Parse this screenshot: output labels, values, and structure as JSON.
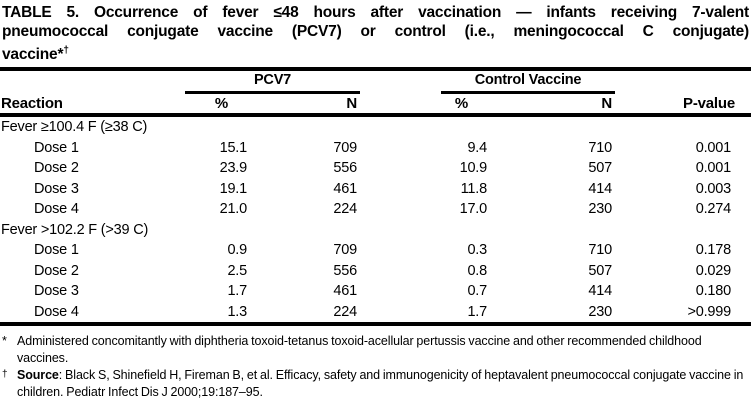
{
  "title": {
    "lines": [
      "TABLE 5. Occurrence of fever ≤48 hours after vaccination — infants receiving 7-valent",
      "pneumococcal conjugate vaccine (PCV7) or control (i.e., meningococcal C conjugate)"
    ],
    "line3_base": "vaccine*",
    "line3_sup": "†"
  },
  "table": {
    "group_headers": [
      "PCV7",
      "Control Vaccine"
    ],
    "columns": [
      "Reaction",
      "%",
      "N",
      "%",
      "N",
      "P-value"
    ],
    "sections": [
      {
        "header": "Fever ≥100.4 F (≥38 C)",
        "rows": [
          {
            "label": "Dose 1",
            "pcv7_pct": "15.1",
            "pcv7_n": "709",
            "control_pct": "9.4",
            "control_n": "710",
            "p_value": "0.001"
          },
          {
            "label": "Dose 2",
            "pcv7_pct": "23.9",
            "pcv7_n": "556",
            "control_pct": "10.9",
            "control_n": "507",
            "p_value": "0.001"
          },
          {
            "label": "Dose 3",
            "pcv7_pct": "19.1",
            "pcv7_n": "461",
            "control_pct": "11.8",
            "control_n": "414",
            "p_value": "0.003"
          },
          {
            "label": "Dose 4",
            "pcv7_pct": "21.0",
            "pcv7_n": "224",
            "control_pct": "17.0",
            "control_n": "230",
            "p_value": "0.274"
          }
        ]
      },
      {
        "header": "Fever >102.2 F (>39 C)",
        "rows": [
          {
            "label": "Dose 1",
            "pcv7_pct": "0.9",
            "pcv7_n": "709",
            "control_pct": "0.3",
            "control_n": "710",
            "p_value": "0.178"
          },
          {
            "label": "Dose 2",
            "pcv7_pct": "2.5",
            "pcv7_n": "556",
            "control_pct": "0.8",
            "control_n": "507",
            "p_value": "0.029"
          },
          {
            "label": "Dose 3",
            "pcv7_pct": "1.7",
            "pcv7_n": "461",
            "control_pct": "0.7",
            "control_n": "414",
            "p_value": "0.180"
          },
          {
            "label": "Dose 4",
            "pcv7_pct": "1.3",
            "pcv7_n": "224",
            "control_pct": "1.7",
            "control_n": "230",
            "p_value": ">0.999"
          }
        ]
      }
    ]
  },
  "footnotes": [
    {
      "marker": "*",
      "text": "Administered concomitantly with diphtheria toxoid-tetanus toxoid-acellular pertussis vaccine and other recommended childhood vaccines."
    },
    {
      "marker": "†",
      "label": "Source",
      "text": ": Black S, Shinefield H, Fireman B, et al. Efficacy, safety and immunogenicity of heptavalent pneumococcal conjugate vaccine in children. Pediatr Infect Dis J 2000;19:187–95."
    }
  ]
}
